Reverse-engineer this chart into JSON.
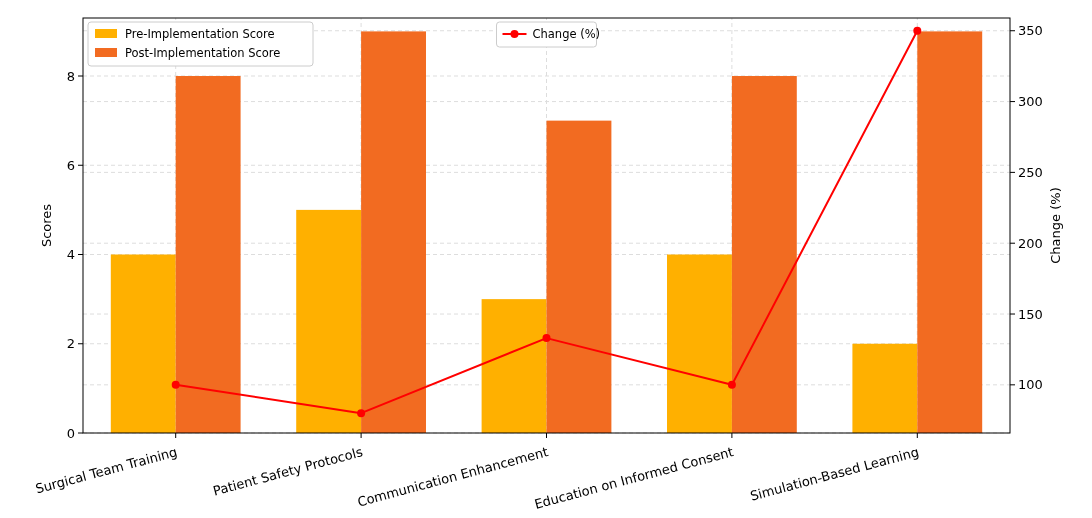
{
  "chart_data": {
    "type": "bar",
    "ylabel": "Scores",
    "y2label": "Change (%)",
    "categories": [
      "Surgical Team Training",
      "Patient Safety Protocols",
      "Communication Enhancement",
      "Education on Informed Consent",
      "Simulation-Based Learning"
    ],
    "series": [
      {
        "name": "Pre-Implementation Score",
        "color": "#ffb000",
        "values": [
          4,
          5,
          3,
          4,
          2
        ]
      },
      {
        "name": "Post-Implementation Score",
        "color": "#f26b21",
        "values": [
          8,
          9,
          7,
          8,
          9
        ]
      },
      {
        "name": "Change (%)",
        "type": "line",
        "axis": "y2",
        "color": "#ff0000",
        "marker": "circle",
        "values": [
          100,
          80,
          133,
          100,
          350
        ]
      }
    ],
    "ylim": [
      0,
      9.3
    ],
    "yticks": [
      0,
      2,
      4,
      6,
      8
    ],
    "y2lim": [
      66,
      359
    ],
    "y2ticks": [
      100,
      150,
      200,
      250,
      300,
      350
    ],
    "grid": true,
    "legend": "top left"
  }
}
